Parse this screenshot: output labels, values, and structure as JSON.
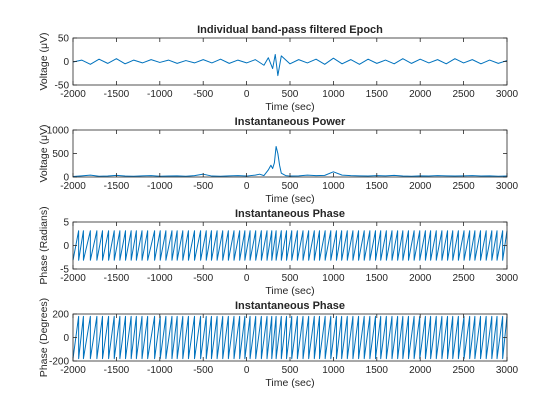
{
  "chart_data": [
    {
      "type": "line",
      "title": "Individual band-pass filtered Epoch",
      "xlabel": "Time (sec)",
      "ylabel": "Voltage (μV)",
      "xlim": [
        -2000,
        3000
      ],
      "ylim": [
        -50,
        50
      ],
      "xticks": [
        "-2000",
        "-1500",
        "-1000",
        "-500",
        "0",
        "500",
        "1000",
        "1500",
        "2000",
        "2500",
        "3000"
      ],
      "yticks": [
        "50",
        "0",
        "-50"
      ],
      "x": [
        -2000,
        -1900,
        -1800,
        -1700,
        -1600,
        -1500,
        -1400,
        -1300,
        -1200,
        -1100,
        -1000,
        -900,
        -800,
        -700,
        -600,
        -500,
        -400,
        -300,
        -200,
        -100,
        0,
        100,
        200,
        250,
        300,
        330,
        360,
        400,
        500,
        600,
        700,
        800,
        900,
        1000,
        1100,
        1200,
        1300,
        1400,
        1500,
        1600,
        1700,
        1800,
        1900,
        2000,
        2100,
        2200,
        2300,
        2400,
        2500,
        2600,
        2700,
        2800,
        2900,
        3000
      ],
      "values": [
        -1,
        3,
        -6,
        5,
        -4,
        6,
        -5,
        3,
        -3,
        4,
        -2,
        3,
        -4,
        2,
        -3,
        4,
        -3,
        5,
        -4,
        3,
        -3,
        4,
        -8,
        8,
        -15,
        15,
        -30,
        12,
        -5,
        4,
        -3,
        5,
        -6,
        7,
        -5,
        4,
        -6,
        5,
        -4,
        3,
        -5,
        6,
        -4,
        5,
        -3,
        4,
        -5,
        6,
        -3,
        4,
        -5,
        3,
        -4,
        2
      ],
      "color": "#0072BD",
      "grid": false
    },
    {
      "type": "line",
      "title": "Instantaneous Power",
      "xlabel": "Time (sec)",
      "ylabel": "Voltage (μV)",
      "xlim": [
        -2000,
        3000
      ],
      "ylim": [
        0,
        1000
      ],
      "xticks": [
        "-2000",
        "-1500",
        "-1000",
        "-500",
        "0",
        "500",
        "1000",
        "1500",
        "2000",
        "2500",
        "3000"
      ],
      "yticks": [
        "1000",
        "500",
        "0"
      ],
      "x": [
        -2000,
        -1900,
        -1800,
        -1700,
        -1600,
        -1500,
        -1400,
        -1300,
        -1200,
        -1100,
        -1000,
        -900,
        -800,
        -700,
        -600,
        -500,
        -400,
        -300,
        -200,
        -100,
        0,
        100,
        150,
        200,
        250,
        280,
        300,
        320,
        340,
        360,
        380,
        400,
        450,
        500,
        600,
        700,
        800,
        900,
        1000,
        1100,
        1200,
        1300,
        1400,
        1500,
        1600,
        1700,
        1800,
        1900,
        2000,
        2100,
        2200,
        2300,
        2400,
        2500,
        2600,
        2700,
        2800,
        2900,
        3000
      ],
      "values": [
        10,
        25,
        40,
        15,
        20,
        35,
        20,
        15,
        25,
        30,
        15,
        20,
        25,
        15,
        30,
        60,
        20,
        15,
        25,
        30,
        20,
        40,
        60,
        30,
        150,
        250,
        180,
        300,
        650,
        500,
        250,
        80,
        30,
        20,
        25,
        40,
        30,
        35,
        110,
        40,
        30,
        25,
        20,
        30,
        25,
        35,
        20,
        15,
        25,
        20,
        30,
        25,
        20,
        25,
        30,
        20,
        25,
        15,
        20
      ],
      "color": "#0072BD",
      "grid": false
    },
    {
      "type": "line",
      "title": "Instantaneous Phase",
      "xlabel": "Time (sec)",
      "ylabel": "Phase (Radians)",
      "xlim": [
        -2000,
        3000
      ],
      "ylim": [
        -5,
        5
      ],
      "xticks": [
        "-2000",
        "-1500",
        "-1000",
        "-500",
        "0",
        "500",
        "1000",
        "1500",
        "2000",
        "2500",
        "3000"
      ],
      "yticks": [
        "5",
        "0",
        "-5"
      ],
      "pattern": "sawtooth wrapping between -π and π",
      "range": [
        -3.1416,
        3.1416
      ],
      "cycle_boundaries": [
        -2000,
        -1935,
        -1880,
        -1800,
        -1725,
        -1660,
        -1590,
        -1525,
        -1460,
        -1395,
        -1330,
        -1270,
        -1205,
        -1140,
        -1060,
        -995,
        -930,
        -860,
        -800,
        -735,
        -670,
        -600,
        -530,
        -465,
        -405,
        -340,
        -275,
        -210,
        -145,
        -80,
        -20,
        40,
        105,
        170,
        235,
        290,
        340,
        400,
        460,
        520,
        585,
        650,
        715,
        780,
        840,
        905,
        970,
        1035,
        1095,
        1160,
        1225,
        1290,
        1355,
        1420,
        1485,
        1545,
        1610,
        1675,
        1740,
        1800,
        1865,
        1930,
        1995,
        2060,
        2120,
        2185,
        2250,
        2315,
        2375,
        2440,
        2505,
        2570,
        2630,
        2695,
        2760,
        2825,
        2885,
        2950,
        3000
      ],
      "color": "#0072BD",
      "grid": false
    },
    {
      "type": "line",
      "title": "Instantaneous Phase",
      "xlabel": "Time (sec)",
      "ylabel": "Phase (Degrees)",
      "xlim": [
        -2000,
        3000
      ],
      "ylim": [
        -200,
        200
      ],
      "xticks": [
        "-2000",
        "-1500",
        "-1000",
        "-500",
        "0",
        "500",
        "1000",
        "1500",
        "2000",
        "2500",
        "3000"
      ],
      "yticks": [
        "200",
        "0",
        "-200"
      ],
      "pattern": "sawtooth wrapping between -180 and 180",
      "range": [
        -180,
        180
      ],
      "cycle_boundaries": [
        -2000,
        -1935,
        -1880,
        -1800,
        -1725,
        -1660,
        -1590,
        -1525,
        -1460,
        -1395,
        -1330,
        -1270,
        -1205,
        -1140,
        -1060,
        -995,
        -930,
        -860,
        -800,
        -735,
        -670,
        -600,
        -530,
        -465,
        -405,
        -340,
        -275,
        -210,
        -145,
        -80,
        -20,
        40,
        105,
        170,
        235,
        290,
        340,
        400,
        460,
        520,
        585,
        650,
        715,
        780,
        840,
        905,
        970,
        1035,
        1095,
        1160,
        1225,
        1290,
        1355,
        1420,
        1485,
        1545,
        1610,
        1675,
        1740,
        1800,
        1865,
        1930,
        1995,
        2060,
        2120,
        2185,
        2250,
        2315,
        2375,
        2440,
        2505,
        2570,
        2630,
        2695,
        2760,
        2825,
        2885,
        2950,
        3000
      ],
      "color": "#0072BD",
      "grid": false
    }
  ]
}
